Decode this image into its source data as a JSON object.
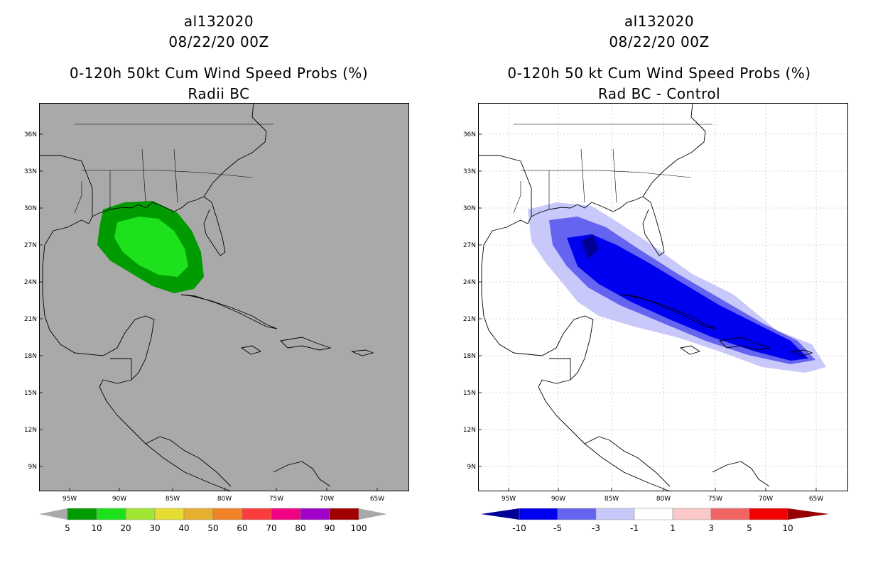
{
  "left": {
    "title_line1": "al132020",
    "title_line2": "08/22/20 00Z",
    "title_line3": "0-120h 50kt Cum Wind Speed Probs (%)",
    "title_line4": "Radii BC",
    "map_bg": "#a9a9a9",
    "lat_labels": [
      "36N",
      "33N",
      "30N",
      "27N",
      "24N",
      "21N",
      "18N",
      "15N",
      "12N",
      "9N"
    ],
    "lon_labels": [
      "95W",
      "90W",
      "85W",
      "80W",
      "75W",
      "70W",
      "65W"
    ],
    "colorbar": {
      "labels": [
        "5",
        "10",
        "20",
        "30",
        "40",
        "50",
        "60",
        "70",
        "80",
        "90",
        "100"
      ],
      "colors": [
        "#009b00",
        "#1ee11e",
        "#a0e632",
        "#e6dc32",
        "#e6af2d",
        "#f08228",
        "#fa3c3c",
        "#f00082",
        "#a000c8",
        "#a00000"
      ]
    }
  },
  "right": {
    "title_line1": "al132020",
    "title_line2": "08/22/20 00Z",
    "title_line3": "0-120h 50 kt Cum Wind Speed Probs (%)",
    "title_line4": "Rad BC - Control",
    "map_bg": "#ffffff",
    "lat_labels": [
      "36N",
      "33N",
      "30N",
      "27N",
      "24N",
      "21N",
      "18N",
      "15N",
      "12N",
      "9N"
    ],
    "lon_labels": [
      "95W",
      "90W",
      "85W",
      "80W",
      "75W",
      "70W",
      "65W"
    ],
    "colorbar": {
      "labels": [
        "-10",
        "-5",
        "-3",
        "-1",
        "1",
        "3",
        "5",
        "10"
      ],
      "colors": [
        "#000096",
        "#0000f0",
        "#6464f0",
        "#c8c8fa",
        "#ffffff",
        "#fac8c8",
        "#f06464",
        "#f00000",
        "#960000"
      ]
    }
  }
}
